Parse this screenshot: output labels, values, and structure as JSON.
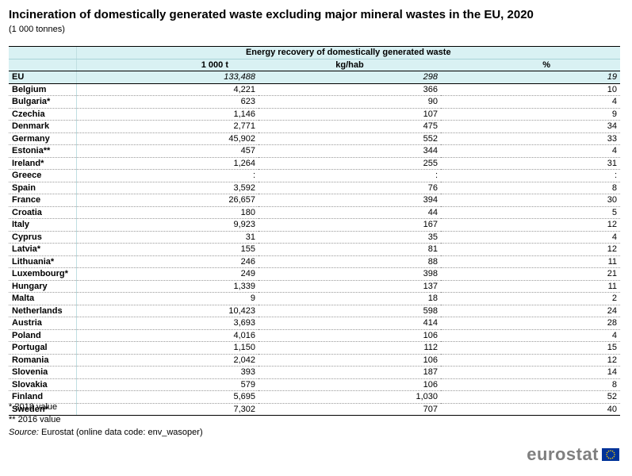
{
  "title": "Incineration of domestically generated waste excluding major mineral wastes in the EU, 2020",
  "subtitle": "(1 000 tonnes)",
  "chart_data": {
    "type": "table",
    "group_header": "Energy recovery of domestically generated waste",
    "columns": [
      "1 000 t",
      "kg/hab",
      "%"
    ],
    "eu_row": {
      "name": "EU",
      "values": [
        "133,488",
        "298",
        "19"
      ]
    },
    "rows": [
      {
        "name": "Belgium",
        "values": [
          "4,221",
          "366",
          "10"
        ]
      },
      {
        "name": "Bulgaria*",
        "values": [
          "623",
          "90",
          "4"
        ]
      },
      {
        "name": "Czechia",
        "values": [
          "1,146",
          "107",
          "9"
        ]
      },
      {
        "name": "Denmark",
        "values": [
          "2,771",
          "475",
          "34"
        ]
      },
      {
        "name": "Germany",
        "values": [
          "45,902",
          "552",
          "33"
        ]
      },
      {
        "name": "Estonia**",
        "values": [
          "457",
          "344",
          "4"
        ]
      },
      {
        "name": "Ireland*",
        "values": [
          "1,264",
          "255",
          "31"
        ]
      },
      {
        "name": "Greece",
        "values": [
          ":",
          ":",
          ":"
        ]
      },
      {
        "name": "Spain",
        "values": [
          "3,592",
          "76",
          "8"
        ]
      },
      {
        "name": "France",
        "values": [
          "26,657",
          "394",
          "30"
        ]
      },
      {
        "name": "Croatia",
        "values": [
          "180",
          "44",
          "5"
        ]
      },
      {
        "name": "Italy",
        "values": [
          "9,923",
          "167",
          "12"
        ]
      },
      {
        "name": "Cyprus",
        "values": [
          "31",
          "35",
          "4"
        ]
      },
      {
        "name": "Latvia*",
        "values": [
          "155",
          "81",
          "12"
        ]
      },
      {
        "name": "Lithuania*",
        "values": [
          "246",
          "88",
          "11"
        ]
      },
      {
        "name": "Luxembourg*",
        "values": [
          "249",
          "398",
          "21"
        ]
      },
      {
        "name": "Hungary",
        "values": [
          "1,339",
          "137",
          "11"
        ]
      },
      {
        "name": "Malta",
        "values": [
          "9",
          "18",
          "2"
        ]
      },
      {
        "name": "Netherlands",
        "values": [
          "10,423",
          "598",
          "24"
        ]
      },
      {
        "name": "Austria",
        "values": [
          "3,693",
          "414",
          "28"
        ]
      },
      {
        "name": "Poland",
        "values": [
          "4,016",
          "106",
          "4"
        ]
      },
      {
        "name": "Portugal",
        "values": [
          "1,150",
          "112",
          "15"
        ]
      },
      {
        "name": "Romania",
        "values": [
          "2,042",
          "106",
          "12"
        ]
      },
      {
        "name": "Slovenia",
        "values": [
          "393",
          "187",
          "14"
        ]
      },
      {
        "name": "Slovakia",
        "values": [
          "579",
          "106",
          "8"
        ]
      },
      {
        "name": "Finland",
        "values": [
          "5,695",
          "1,030",
          "52"
        ]
      },
      {
        "name": "Sweden*",
        "values": [
          "7,302",
          "707",
          "40"
        ]
      }
    ]
  },
  "notes": {
    "note1": "* 2018 value",
    "note2": "** 2016 value",
    "source_label": "Source:",
    "source_text": "Eurostat (online data code: env_wasoper)"
  },
  "logo": {
    "text": "eurostat",
    "flag_color": "#003399",
    "star_color": "#ffcc00"
  }
}
